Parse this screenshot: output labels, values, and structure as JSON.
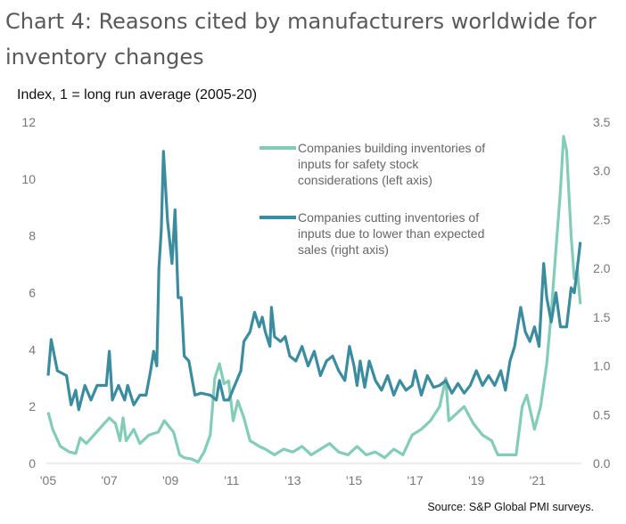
{
  "chart_data": {
    "type": "line",
    "title": "Chart 4: Reasons cited by manufacturers worldwide for inventory changes",
    "ylabel": "Index, 1 = long run average (2005-20)",
    "source": "Source: S&P Global PMI surveys.",
    "xlim": [
      2005,
      2022.8
    ],
    "ylim_left": [
      0,
      12
    ],
    "ylim_right": [
      0,
      3.5
    ],
    "left_ticks": [
      "0",
      "2",
      "4",
      "6",
      "8",
      "10",
      "12"
    ],
    "right_ticks": [
      "0.0",
      "0.5",
      "1.0",
      "1.5",
      "2.0",
      "2.5",
      "3.0",
      "3.5"
    ],
    "x_ticks": [
      {
        "year": 2005,
        "label": "'05"
      },
      {
        "year": 2007,
        "label": "'07"
      },
      {
        "year": 2009,
        "label": "'09"
      },
      {
        "year": 2011,
        "label": "'11"
      },
      {
        "year": 2013,
        "label": "'13"
      },
      {
        "year": 2015,
        "label": "'15"
      },
      {
        "year": 2017,
        "label": "'17"
      },
      {
        "year": 2019,
        "label": "'19"
      },
      {
        "year": 2021,
        "label": "'21"
      }
    ],
    "series": [
      {
        "name": "Companies building inventories of inputs for safety stock considerations (left axis)",
        "legend_lines": [
          "Companies building inventories of",
          "inputs for safety stock",
          "considerations (left axis)"
        ],
        "axis": "left",
        "color": "#83cdb8",
        "x": [
          2005.0,
          2005.15,
          2005.4,
          2005.7,
          2005.9,
          2006.05,
          2006.25,
          2006.5,
          2006.75,
          2007.0,
          2007.2,
          2007.35,
          2007.45,
          2007.55,
          2007.8,
          2008.0,
          2008.3,
          2008.6,
          2008.8,
          2009.1,
          2009.3,
          2009.45,
          2009.7,
          2009.9,
          2010.1,
          2010.3,
          2010.45,
          2010.6,
          2010.75,
          2010.9,
          2011.05,
          2011.2,
          2011.4,
          2011.6,
          2011.9,
          2012.1,
          2012.4,
          2012.7,
          2013.0,
          2013.3,
          2013.6,
          2013.9,
          2014.2,
          2014.5,
          2014.8,
          2015.1,
          2015.4,
          2015.7,
          2016.0,
          2016.3,
          2016.6,
          2016.9,
          2017.2,
          2017.5,
          2017.8,
          2018.0,
          2018.1,
          2018.4,
          2018.6,
          2018.9,
          2019.2,
          2019.5,
          2019.7,
          2020.0,
          2020.3,
          2020.5,
          2020.65,
          2020.9,
          2021.1,
          2021.3,
          2021.45,
          2021.6,
          2021.75,
          2021.85,
          2021.95,
          2022.1,
          2022.2,
          2022.3,
          2022.4
        ],
        "values": [
          1.8,
          1.2,
          0.6,
          0.4,
          0.35,
          0.9,
          0.7,
          1.0,
          1.3,
          1.6,
          1.4,
          0.8,
          1.6,
          0.8,
          1.2,
          0.7,
          1.0,
          1.1,
          1.5,
          1.1,
          0.3,
          0.2,
          0.15,
          0.05,
          0.4,
          1.0,
          3.0,
          3.5,
          2.8,
          2.9,
          1.5,
          2.2,
          1.6,
          0.8,
          0.6,
          0.5,
          0.3,
          0.5,
          0.4,
          0.6,
          0.3,
          0.5,
          0.7,
          0.4,
          0.3,
          0.6,
          0.3,
          0.4,
          0.2,
          0.5,
          0.3,
          1.0,
          1.2,
          1.5,
          2.0,
          3.0,
          1.5,
          1.8,
          2.0,
          1.4,
          1.0,
          0.8,
          0.3,
          0.3,
          0.3,
          2.0,
          2.4,
          1.2,
          2.0,
          3.5,
          5.3,
          7.5,
          9.6,
          11.5,
          11.0,
          8.0,
          6.5,
          6.8,
          5.6
        ]
      },
      {
        "name": "Companies cutting inventories of inputs due to lower than expected sales (right axis)",
        "legend_lines": [
          "Companies cutting inventories of",
          "inputs due to lower than expected",
          "sales (right axis)"
        ],
        "axis": "right",
        "color": "#3b8c9e",
        "x": [
          2005.0,
          2005.1,
          2005.3,
          2005.6,
          2005.75,
          2005.9,
          2006.0,
          2006.2,
          2006.4,
          2006.6,
          2006.9,
          2007.0,
          2007.1,
          2007.3,
          2007.5,
          2007.6,
          2007.8,
          2008.0,
          2008.2,
          2008.35,
          2008.45,
          2008.55,
          2008.62,
          2008.7,
          2008.77,
          2008.9,
          2009.05,
          2009.15,
          2009.25,
          2009.35,
          2009.45,
          2009.6,
          2009.8,
          2010.0,
          2010.3,
          2010.5,
          2010.6,
          2010.75,
          2010.9,
          2011.1,
          2011.3,
          2011.4,
          2011.6,
          2011.75,
          2011.9,
          2012.0,
          2012.1,
          2012.25,
          2012.3,
          2012.4,
          2012.6,
          2012.75,
          2012.9,
          2013.1,
          2013.3,
          2013.5,
          2013.7,
          2013.9,
          2014.1,
          2014.3,
          2014.5,
          2014.7,
          2014.85,
          2015.0,
          2015.1,
          2015.2,
          2015.35,
          2015.5,
          2015.7,
          2015.9,
          2016.1,
          2016.3,
          2016.5,
          2016.7,
          2016.9,
          2017.0,
          2017.2,
          2017.4,
          2017.6,
          2017.8,
          2018.0,
          2018.2,
          2018.4,
          2018.6,
          2018.8,
          2019.0,
          2019.2,
          2019.4,
          2019.6,
          2019.8,
          2019.95,
          2020.1,
          2020.25,
          2020.45,
          2020.6,
          2020.75,
          2020.9,
          2021.05,
          2021.2,
          2021.3,
          2021.45,
          2021.6,
          2021.75,
          2021.95,
          2022.1,
          2022.2,
          2022.3,
          2022.4
        ],
        "values": [
          0.9,
          1.27,
          0.95,
          0.9,
          0.6,
          0.75,
          0.55,
          0.8,
          0.65,
          0.8,
          0.8,
          1.15,
          0.65,
          0.8,
          0.65,
          0.8,
          0.6,
          0.7,
          0.7,
          0.95,
          1.15,
          1.0,
          2.0,
          2.4,
          3.2,
          2.5,
          2.05,
          2.6,
          1.7,
          1.7,
          1.1,
          1.05,
          0.7,
          0.72,
          0.7,
          0.65,
          0.85,
          0.65,
          0.65,
          0.8,
          0.95,
          1.25,
          1.35,
          1.55,
          1.4,
          1.5,
          1.35,
          1.2,
          1.6,
          1.3,
          1.25,
          1.3,
          1.1,
          1.05,
          1.2,
          1.0,
          1.15,
          0.9,
          1.05,
          1.1,
          0.95,
          0.85,
          1.2,
          1.0,
          0.8,
          1.05,
          0.78,
          1.05,
          0.85,
          0.75,
          0.9,
          0.7,
          0.85,
          0.75,
          0.8,
          0.95,
          0.7,
          0.9,
          0.78,
          0.8,
          0.85,
          0.72,
          0.82,
          0.72,
          0.8,
          0.95,
          0.8,
          0.9,
          0.8,
          0.95,
          0.75,
          1.05,
          1.2,
          1.6,
          1.35,
          1.25,
          1.4,
          1.2,
          2.05,
          1.7,
          1.45,
          1.75,
          1.4,
          1.4,
          1.8,
          1.75,
          2.0,
          2.27
        ]
      }
    ]
  }
}
